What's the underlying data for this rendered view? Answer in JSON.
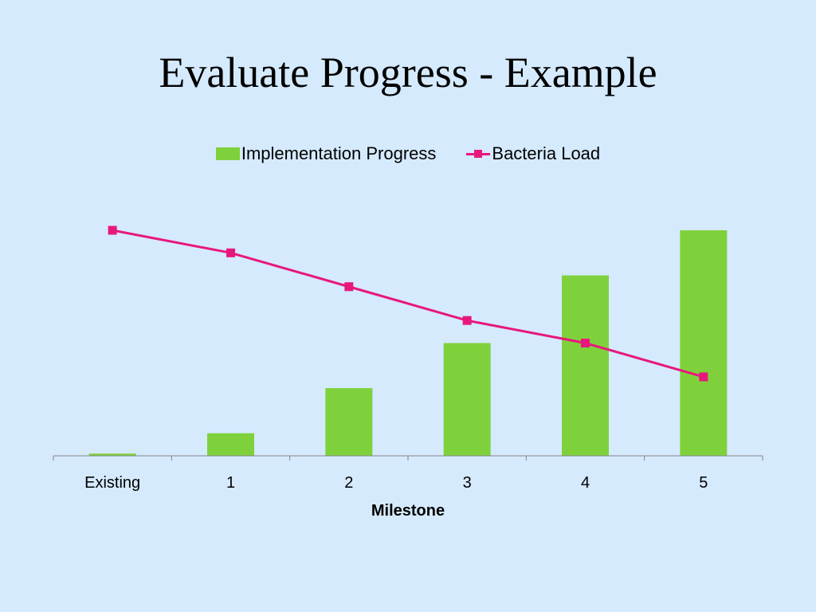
{
  "slide": {
    "title": "Evaluate Progress - Example",
    "background": "#d5eafd"
  },
  "chart_data": {
    "type": "bar",
    "title": "",
    "xlabel": "Milestone",
    "ylabel": "",
    "categories": [
      "Existing",
      "1",
      "2",
      "3",
      "4",
      "5"
    ],
    "ylim": [
      0,
      10
    ],
    "grid": false,
    "legend_position": "top-center",
    "series": [
      {
        "name": "Implementation Progress",
        "type": "bar",
        "color": "#7fd13b",
        "values": [
          0.1,
          1,
          3,
          5,
          8,
          10
        ]
      },
      {
        "name": "Bacteria Load",
        "type": "line",
        "color": "#e8177d",
        "marker": "square",
        "values": [
          10,
          9,
          7.5,
          6,
          5,
          3.5
        ]
      }
    ]
  }
}
